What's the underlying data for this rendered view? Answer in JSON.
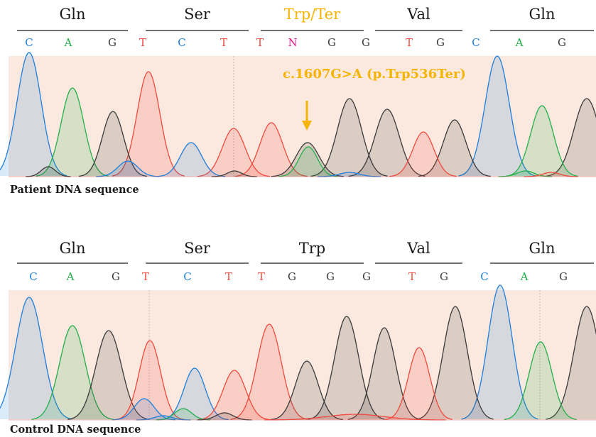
{
  "colors": {
    "A": "#22b04b",
    "C": "#1e7fdc",
    "G": "#3a3a3a",
    "T": "#f04a40",
    "N": "#e6198a",
    "mutation": "#f5b400",
    "band": "#fbe9df"
  },
  "patient": {
    "label": "Patient DNA sequence",
    "mutation_label": "c.1607G>A (p.Trp536Ter)",
    "codons": [
      {
        "name": "Gln",
        "highlight": false
      },
      {
        "name": "Ser",
        "highlight": false
      },
      {
        "name": "Trp/Ter",
        "highlight": true
      },
      {
        "name": "Val",
        "highlight": false
      },
      {
        "name": "Gln",
        "highlight": false
      }
    ],
    "bases": [
      "C",
      "A",
      "G",
      "T",
      "C",
      "T",
      "T",
      "N",
      "G",
      "G",
      "T",
      "G",
      "C",
      "A",
      "G"
    ]
  },
  "control": {
    "label": "Control DNA sequence",
    "codons": [
      {
        "name": "Gln",
        "highlight": false
      },
      {
        "name": "Ser",
        "highlight": false
      },
      {
        "name": "Trp",
        "highlight": false
      },
      {
        "name": "Val",
        "highlight": false
      },
      {
        "name": "Gln",
        "highlight": false
      }
    ],
    "bases": [
      "C",
      "A",
      "G",
      "T",
      "C",
      "T",
      "T",
      "G",
      "G",
      "G",
      "T",
      "G",
      "C",
      "A",
      "G"
    ]
  }
}
